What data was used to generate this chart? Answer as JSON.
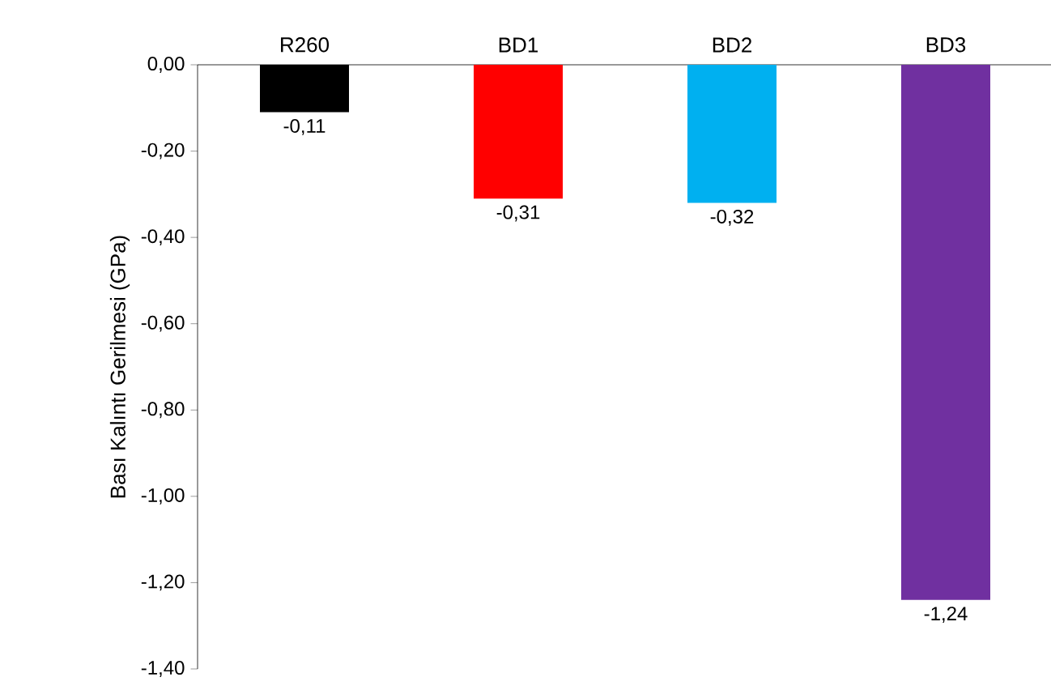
{
  "chart_data": {
    "type": "bar",
    "ylabel": "Bası Kalıntı Gerilmesi (GPa)",
    "categories": [
      "R260",
      "BD1",
      "BD2",
      "BD3"
    ],
    "values": [
      -0.11,
      -0.31,
      -0.32,
      -1.24
    ],
    "colors": [
      "#000000",
      "#ff0000",
      "#00b0f0",
      "#7030a0"
    ],
    "value_labels": [
      "-0,11",
      "-0,31",
      "-0,32",
      "-1,24"
    ],
    "ylim": [
      -1.4,
      0
    ],
    "yticks": [
      {
        "value": 0,
        "label": "0,00"
      },
      {
        "value": -0.2,
        "label": "-0,20"
      },
      {
        "value": -0.4,
        "label": "-0,40"
      },
      {
        "value": -0.6,
        "label": "-0,60"
      },
      {
        "value": -0.8,
        "label": "-0,80"
      },
      {
        "value": -1.0,
        "label": "-1,00"
      },
      {
        "value": -1.2,
        "label": "-1,20"
      },
      {
        "value": -1.4,
        "label": "-1,40"
      }
    ]
  }
}
